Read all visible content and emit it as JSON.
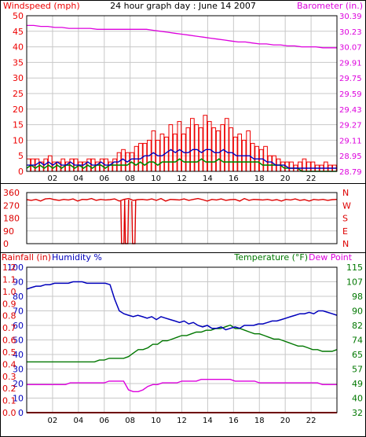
{
  "title": "24 hour graph day : June 14 2007",
  "colors": {
    "wind": "#ee0000",
    "gust": "#0000bb",
    "avg": "#008800",
    "baro": "#dd00dd",
    "dir": "#dd0000",
    "rain": "#dd0000",
    "humidity": "#0000bb",
    "temp": "#007700",
    "dew": "#dd00dd",
    "frame": "#000000",
    "grid": "#c8c8c8"
  },
  "chart_data": [
    {
      "type": "line",
      "name": "wind-baro",
      "left_label": "Windspeed (mph)",
      "right_label": "Barometer (in.)",
      "x_ticks": [
        "02",
        "04",
        "06",
        "08",
        "10",
        "12",
        "14",
        "16",
        "18",
        "20",
        "22"
      ],
      "ylim": [
        0,
        50
      ],
      "y_ticks": [
        "0",
        "5",
        "10",
        "15",
        "20",
        "25",
        "30",
        "35",
        "40",
        "45",
        "50"
      ],
      "y2lim": [
        28.79,
        30.39
      ],
      "y2_ticks": [
        "28.79",
        "28.95",
        "29.11",
        "29.27",
        "29.43",
        "29.59",
        "29.75",
        "29.91",
        "30.07",
        "30.23",
        "30.39"
      ],
      "series": [
        {
          "key": "gust",
          "style": "bars",
          "color": "wind",
          "values": [
            4,
            4,
            4,
            3,
            4,
            5,
            3,
            3,
            4,
            3,
            4,
            4,
            3,
            3,
            4,
            4,
            3,
            4,
            4,
            3,
            4,
            6,
            7,
            6,
            6,
            8,
            9,
            9,
            10,
            13,
            10,
            12,
            11,
            15,
            12,
            16,
            12,
            14,
            17,
            15,
            14,
            18,
            16,
            14,
            13,
            15,
            17,
            14,
            11,
            12,
            10,
            13,
            9,
            8,
            7,
            8,
            5,
            5,
            4,
            3,
            3,
            3,
            2,
            3,
            4,
            3,
            3,
            2,
            2,
            3,
            2,
            2
          ]
        },
        {
          "key": "speed",
          "style": "line",
          "color": "gust",
          "values": [
            2,
            2,
            2,
            3,
            2,
            3,
            2,
            3,
            2,
            2,
            3,
            2,
            2,
            2,
            3,
            2,
            2,
            3,
            2,
            2,
            3,
            3,
            4,
            3,
            4,
            4,
            4,
            5,
            5,
            6,
            5,
            5,
            6,
            7,
            6,
            7,
            6,
            6,
            7,
            7,
            6,
            7,
            7,
            6,
            6,
            7,
            6,
            6,
            5,
            5,
            5,
            5,
            4,
            4,
            4,
            3,
            3,
            2,
            2,
            2,
            1,
            1,
            1,
            1,
            1,
            1,
            1,
            1,
            1,
            1,
            1,
            1
          ]
        },
        {
          "key": "avg",
          "style": "line",
          "color": "avg",
          "values": [
            1,
            2,
            1,
            2,
            1,
            2,
            1,
            2,
            1,
            2,
            2,
            1,
            2,
            1,
            2,
            1,
            2,
            2,
            1,
            2,
            2,
            2,
            2,
            2,
            3,
            2,
            3,
            2,
            3,
            3,
            2,
            3,
            3,
            3,
            3,
            4,
            3,
            3,
            3,
            3,
            4,
            3,
            3,
            3,
            4,
            3,
            3,
            3,
            3,
            3,
            3,
            3,
            3,
            3,
            2,
            2,
            2,
            2,
            2,
            1,
            1,
            1,
            1,
            0,
            0,
            0,
            0,
            0,
            0,
            0,
            0,
            0
          ]
        },
        {
          "key": "baro",
          "style": "line",
          "axis": "right",
          "color": "baro",
          "values": [
            30.29,
            30.29,
            30.28,
            30.28,
            30.27,
            30.27,
            30.26,
            30.26,
            30.26,
            30.26,
            30.25,
            30.25,
            30.25,
            30.25,
            30.25,
            30.25,
            30.25,
            30.25,
            30.24,
            30.23,
            30.22,
            30.21,
            30.2,
            30.19,
            30.18,
            30.17,
            30.16,
            30.15,
            30.14,
            30.13,
            30.12,
            30.12,
            30.11,
            30.1,
            30.1,
            30.09,
            30.09,
            30.08,
            30.08,
            30.07,
            30.07,
            30.07,
            30.06,
            30.06,
            30.06
          ]
        }
      ]
    },
    {
      "type": "line",
      "name": "wind-direction",
      "left_ticks": [
        "360",
        "270",
        "180",
        "90",
        "0"
      ],
      "right_ticks": [
        "N",
        "W",
        "S",
        "E",
        "N"
      ],
      "ylim": [
        0,
        360
      ],
      "drops": [
        7.4,
        7.7,
        8.25
      ],
      "values": [
        310,
        305,
        312,
        300,
        315,
        318,
        310,
        305,
        312,
        308,
        315,
        300,
        312,
        310,
        318,
        305,
        312,
        308,
        310,
        315,
        300,
        312,
        318,
        305,
        310,
        312,
        308,
        315,
        305,
        318,
        300,
        312,
        310,
        308,
        315,
        305,
        312,
        318,
        310,
        300,
        312,
        308,
        315,
        305,
        310,
        312,
        300,
        318,
        305,
        312,
        310,
        308,
        312,
        305,
        310,
        300,
        312,
        308,
        315,
        305,
        310,
        300,
        312,
        308,
        312,
        305,
        310,
        312
      ]
    },
    {
      "type": "line",
      "name": "rain-humidity-temp",
      "rain_label": "Rainfall (in)",
      "humidity_label": "Humidity %",
      "temp_label": "Temperature (°F)",
      "dew_label": "Dew Point",
      "x_ticks": [
        "02",
        "04",
        "06",
        "08",
        "10",
        "12",
        "14",
        "16",
        "18",
        "20",
        "22"
      ],
      "ylim": [
        0,
        100
      ],
      "hum_ticks": [
        "0",
        "10",
        "20",
        "30",
        "40",
        "50",
        "60",
        "70",
        "80",
        "90",
        "100"
      ],
      "rain_ticks": [
        "0.0",
        "0.1",
        "0.2",
        "0.3",
        "0.4",
        "0.5",
        "0.6",
        "0.7",
        "0.8",
        "0.9",
        "1.0",
        "1.1",
        "1.2"
      ],
      "y2lim": [
        32,
        115
      ],
      "temp_ticks": [
        "32",
        "40",
        "49",
        "57",
        "65",
        "74",
        "82",
        "90",
        "98",
        "107",
        "115"
      ],
      "series": [
        {
          "key": "humidity",
          "color": "humidity",
          "values": [
            85,
            86,
            87,
            87,
            88,
            88,
            89,
            89,
            89,
            89,
            90,
            90,
            90,
            89,
            89,
            89,
            89,
            89,
            88,
            78,
            70,
            68,
            67,
            66,
            67,
            66,
            65,
            66,
            64,
            66,
            65,
            64,
            63,
            62,
            63,
            61,
            62,
            60,
            59,
            60,
            58,
            58,
            59,
            57,
            58,
            59,
            58,
            60,
            60,
            60,
            61,
            61,
            62,
            63,
            63,
            64,
            65,
            66,
            67,
            68,
            68,
            69,
            68,
            70,
            70,
            69,
            68,
            67
          ]
        },
        {
          "key": "temp",
          "color": "temp",
          "values": [
            61,
            61,
            61,
            61,
            61,
            61,
            61,
            61,
            61,
            61,
            61,
            61,
            61,
            61,
            61,
            62,
            62,
            63,
            63,
            63,
            63,
            64,
            66,
            68,
            68,
            69,
            71,
            71,
            73,
            73,
            74,
            75,
            76,
            76,
            77,
            78,
            78,
            79,
            79,
            80,
            80,
            81,
            82,
            80,
            80,
            79,
            78,
            77,
            77,
            76,
            75,
            74,
            74,
            73,
            72,
            71,
            70,
            70,
            69,
            68,
            68,
            67,
            67,
            67,
            68
          ]
        },
        {
          "key": "dew",
          "color": "dew",
          "values": [
            48,
            48,
            48,
            48,
            48,
            48,
            48,
            48,
            48,
            49,
            49,
            49,
            49,
            49,
            49,
            49,
            49,
            50,
            50,
            50,
            50,
            45,
            44,
            44,
            45,
            47,
            48,
            48,
            49,
            49,
            49,
            49,
            50,
            50,
            50,
            50,
            51,
            51,
            51,
            51,
            51,
            51,
            51,
            50,
            50,
            50,
            50,
            50,
            49,
            49,
            49,
            49,
            49,
            49,
            49,
            49,
            49,
            49,
            49,
            49,
            49,
            48,
            48,
            48,
            48
          ]
        },
        {
          "key": "rain",
          "color": "rain",
          "values": [
            0,
            0,
            0,
            0,
            0,
            0,
            0,
            0,
            0,
            0,
            0,
            0,
            0,
            0,
            0,
            0,
            0,
            0,
            0,
            0,
            0,
            0,
            0,
            0,
            0,
            0,
            0,
            0,
            0,
            0,
            0,
            0,
            0,
            0,
            0,
            0,
            0,
            0,
            0,
            0,
            0,
            0,
            0,
            0,
            0,
            0,
            0,
            0,
            0,
            0,
            0,
            0,
            0,
            0,
            0,
            0,
            0,
            0,
            0,
            0,
            0,
            0,
            0,
            0,
            0,
            0,
            0,
            0,
            0,
            0
          ]
        }
      ]
    }
  ]
}
